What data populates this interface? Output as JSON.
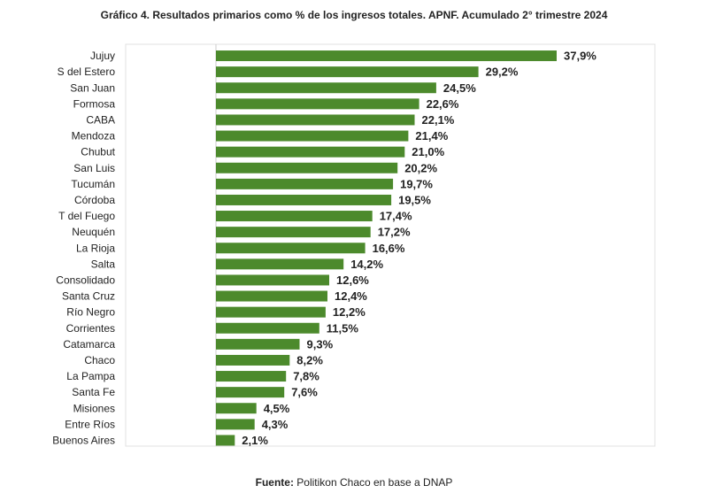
{
  "title": "Gráfico 4. Resultados primarios como % de los ingresos totales. APNF. Acumulado 2° trimestre 2024",
  "source": {
    "label": "Fuente:",
    "text": " Politikon Chaco en base a DNAP"
  },
  "colors": {
    "bar": "#4c8a2c",
    "axis": "#cccccc",
    "text": "#222222"
  },
  "chart_data": {
    "type": "bar",
    "orientation": "horizontal",
    "categories": [
      "Jujuy",
      "S del Estero",
      "San Juan",
      "Formosa",
      "CABA",
      "Mendoza",
      "Chubut",
      "San Luis",
      "Tucumán",
      "Córdoba",
      "T del Fuego",
      "Neuquén",
      "La Rioja",
      "Salta",
      "Consolidado",
      "Santa Cruz",
      "Río Negro",
      "Corrientes",
      "Catamarca",
      "Chaco",
      "La Pampa",
      "Santa Fe",
      "Misiones",
      "Entre Ríos",
      "Buenos Aires"
    ],
    "values": [
      37.9,
      29.2,
      24.5,
      22.6,
      22.1,
      21.4,
      21.0,
      20.2,
      19.7,
      19.5,
      17.4,
      17.2,
      16.6,
      14.2,
      12.6,
      12.4,
      12.2,
      11.5,
      9.3,
      8.2,
      7.8,
      7.6,
      4.5,
      4.3,
      2.1
    ],
    "labels": [
      "37,9%",
      "29,2%",
      "24,5%",
      "22,6%",
      "22,1%",
      "21,4%",
      "21,0%",
      "20,2%",
      "19,7%",
      "19,5%",
      "17,4%",
      "17,2%",
      "16,6%",
      "14,2%",
      "12,6%",
      "12,4%",
      "12,2%",
      "11,5%",
      "9,3%",
      "8,2%",
      "7,8%",
      "7,6%",
      "4,5%",
      "4,3%",
      "2,1%"
    ],
    "xlim": [
      0,
      38
    ]
  }
}
